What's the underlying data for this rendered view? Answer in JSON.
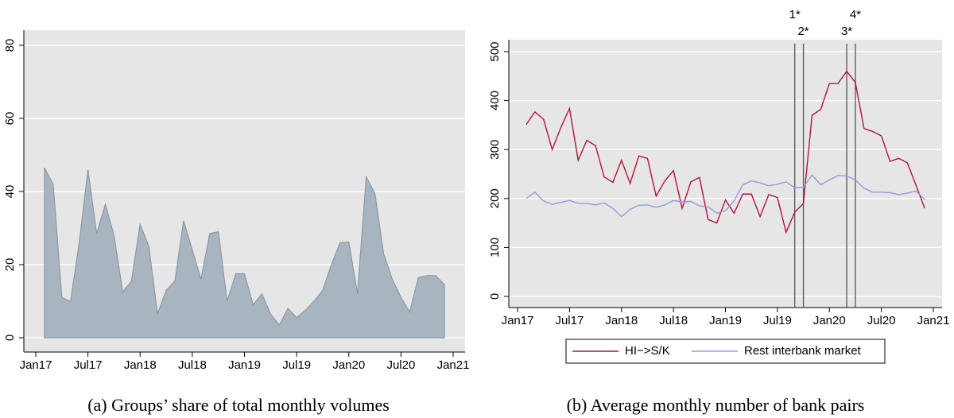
{
  "chart_data": [
    {
      "type": "area",
      "caption": "(a) Groups’ share of total monthly volumes",
      "x": [
        "2017-02",
        "2017-03",
        "2017-04",
        "2017-05",
        "2017-06",
        "2017-07",
        "2017-08",
        "2017-09",
        "2017-10",
        "2017-11",
        "2017-12",
        "2018-01",
        "2018-02",
        "2018-03",
        "2018-04",
        "2018-05",
        "2018-06",
        "2018-07",
        "2018-08",
        "2018-09",
        "2018-10",
        "2018-11",
        "2018-12",
        "2019-01",
        "2019-02",
        "2019-03",
        "2019-04",
        "2019-05",
        "2019-06",
        "2019-07",
        "2019-08",
        "2019-09",
        "2019-10",
        "2019-11",
        "2019-12",
        "2020-01",
        "2020-02",
        "2020-03",
        "2020-04",
        "2020-05",
        "2020-06",
        "2020-07",
        "2020-08",
        "2020-09",
        "2020-10",
        "2020-11",
        "2020-12"
      ],
      "values": [
        46.5,
        42,
        11,
        10,
        26,
        46,
        28.5,
        36.5,
        28,
        12.5,
        15.5,
        31,
        25,
        6.5,
        13,
        15.5,
        32,
        24,
        16,
        28.5,
        29,
        10,
        17.5,
        17.5,
        9,
        12,
        6.5,
        3.5,
        8,
        5.5,
        7.5,
        10,
        13,
        20,
        26,
        26.2,
        12,
        44,
        39.5,
        23,
        16,
        11,
        7,
        16.5,
        17,
        17,
        14.5
      ],
      "color": "#a9b4c1",
      "edge_color": "#8c97a5",
      "xlim": [
        "2017-01",
        "2021-01"
      ],
      "xticks": [
        {
          "value": "2017-01",
          "label": "Jan17"
        },
        {
          "value": "2017-07",
          "label": "Jul17"
        },
        {
          "value": "2018-01",
          "label": "Jan18"
        },
        {
          "value": "2018-07",
          "label": "Jul18"
        },
        {
          "value": "2019-01",
          "label": "Jan19"
        },
        {
          "value": "2019-07",
          "label": "Jul19"
        },
        {
          "value": "2020-01",
          "label": "Jan20"
        },
        {
          "value": "2020-07",
          "label": "Jul20"
        },
        {
          "value": "2021-01",
          "label": "Jan21"
        }
      ],
      "ylim": [
        0,
        80
      ],
      "yticks": [
        0,
        20,
        40,
        60,
        80
      ],
      "grid": true
    },
    {
      "type": "line",
      "caption": "(b) Average monthly number of bank pairs",
      "x": [
        "2017-02",
        "2017-03",
        "2017-04",
        "2017-05",
        "2017-06",
        "2017-07",
        "2017-08",
        "2017-09",
        "2017-10",
        "2017-11",
        "2017-12",
        "2018-01",
        "2018-02",
        "2018-03",
        "2018-04",
        "2018-05",
        "2018-06",
        "2018-07",
        "2018-08",
        "2018-09",
        "2018-10",
        "2018-11",
        "2018-12",
        "2019-01",
        "2019-02",
        "2019-03",
        "2019-04",
        "2019-05",
        "2019-06",
        "2019-07",
        "2019-08",
        "2019-09",
        "2019-10",
        "2019-11",
        "2019-12",
        "2020-01",
        "2020-02",
        "2020-03",
        "2020-04",
        "2020-05",
        "2020-06",
        "2020-07",
        "2020-08",
        "2020-09",
        "2020-10",
        "2020-11",
        "2020-12"
      ],
      "series": [
        {
          "name": "HI−>S/K",
          "color": "#b5123c",
          "values": [
            351,
            377,
            362,
            300,
            345,
            384,
            278,
            319,
            308,
            244,
            233,
            278,
            231,
            287,
            282,
            205,
            236,
            257,
            180,
            234,
            243,
            157,
            150,
            197,
            170,
            209,
            209,
            163,
            208,
            202,
            131,
            172,
            190,
            370,
            382,
            435,
            435,
            460,
            437,
            343,
            337,
            328,
            276,
            282,
            273,
            227,
            180
          ]
        },
        {
          "name": "Rest interbank market",
          "color": "#9b97e0",
          "values": [
            200,
            213,
            195,
            188,
            192,
            196,
            190,
            190,
            187,
            191,
            180,
            163,
            178,
            186,
            187,
            182,
            187,
            196,
            193,
            194,
            185,
            183,
            170,
            175,
            195,
            228,
            236,
            232,
            226,
            229,
            234,
            222,
            223,
            248,
            228,
            238,
            247,
            246,
            238,
            221,
            213,
            213,
            212,
            208,
            211,
            215,
            198
          ]
        }
      ],
      "annotations": [
        {
          "x": "2019-09",
          "label": "1*"
        },
        {
          "x": "2019-10",
          "label": "2*"
        },
        {
          "x": "2020-03",
          "label": "3*"
        },
        {
          "x": "2020-04",
          "label": "4*"
        }
      ],
      "xlim": [
        "2017-01",
        "2021-01"
      ],
      "xticks": [
        {
          "value": "2017-01",
          "label": "Jan17"
        },
        {
          "value": "2017-07",
          "label": "Jul17"
        },
        {
          "value": "2018-01",
          "label": "Jan18"
        },
        {
          "value": "2018-07",
          "label": "Jul18"
        },
        {
          "value": "2019-01",
          "label": "Jan19"
        },
        {
          "value": "2019-07",
          "label": "Jul19"
        },
        {
          "value": "2020-01",
          "label": "Jan20"
        },
        {
          "value": "2020-07",
          "label": "Jul20"
        },
        {
          "value": "2021-01",
          "label": "Jan21"
        }
      ],
      "ylim": [
        0,
        500
      ],
      "yticks": [
        0,
        100,
        200,
        300,
        400,
        500
      ],
      "grid": true,
      "legend": "bottom"
    }
  ]
}
